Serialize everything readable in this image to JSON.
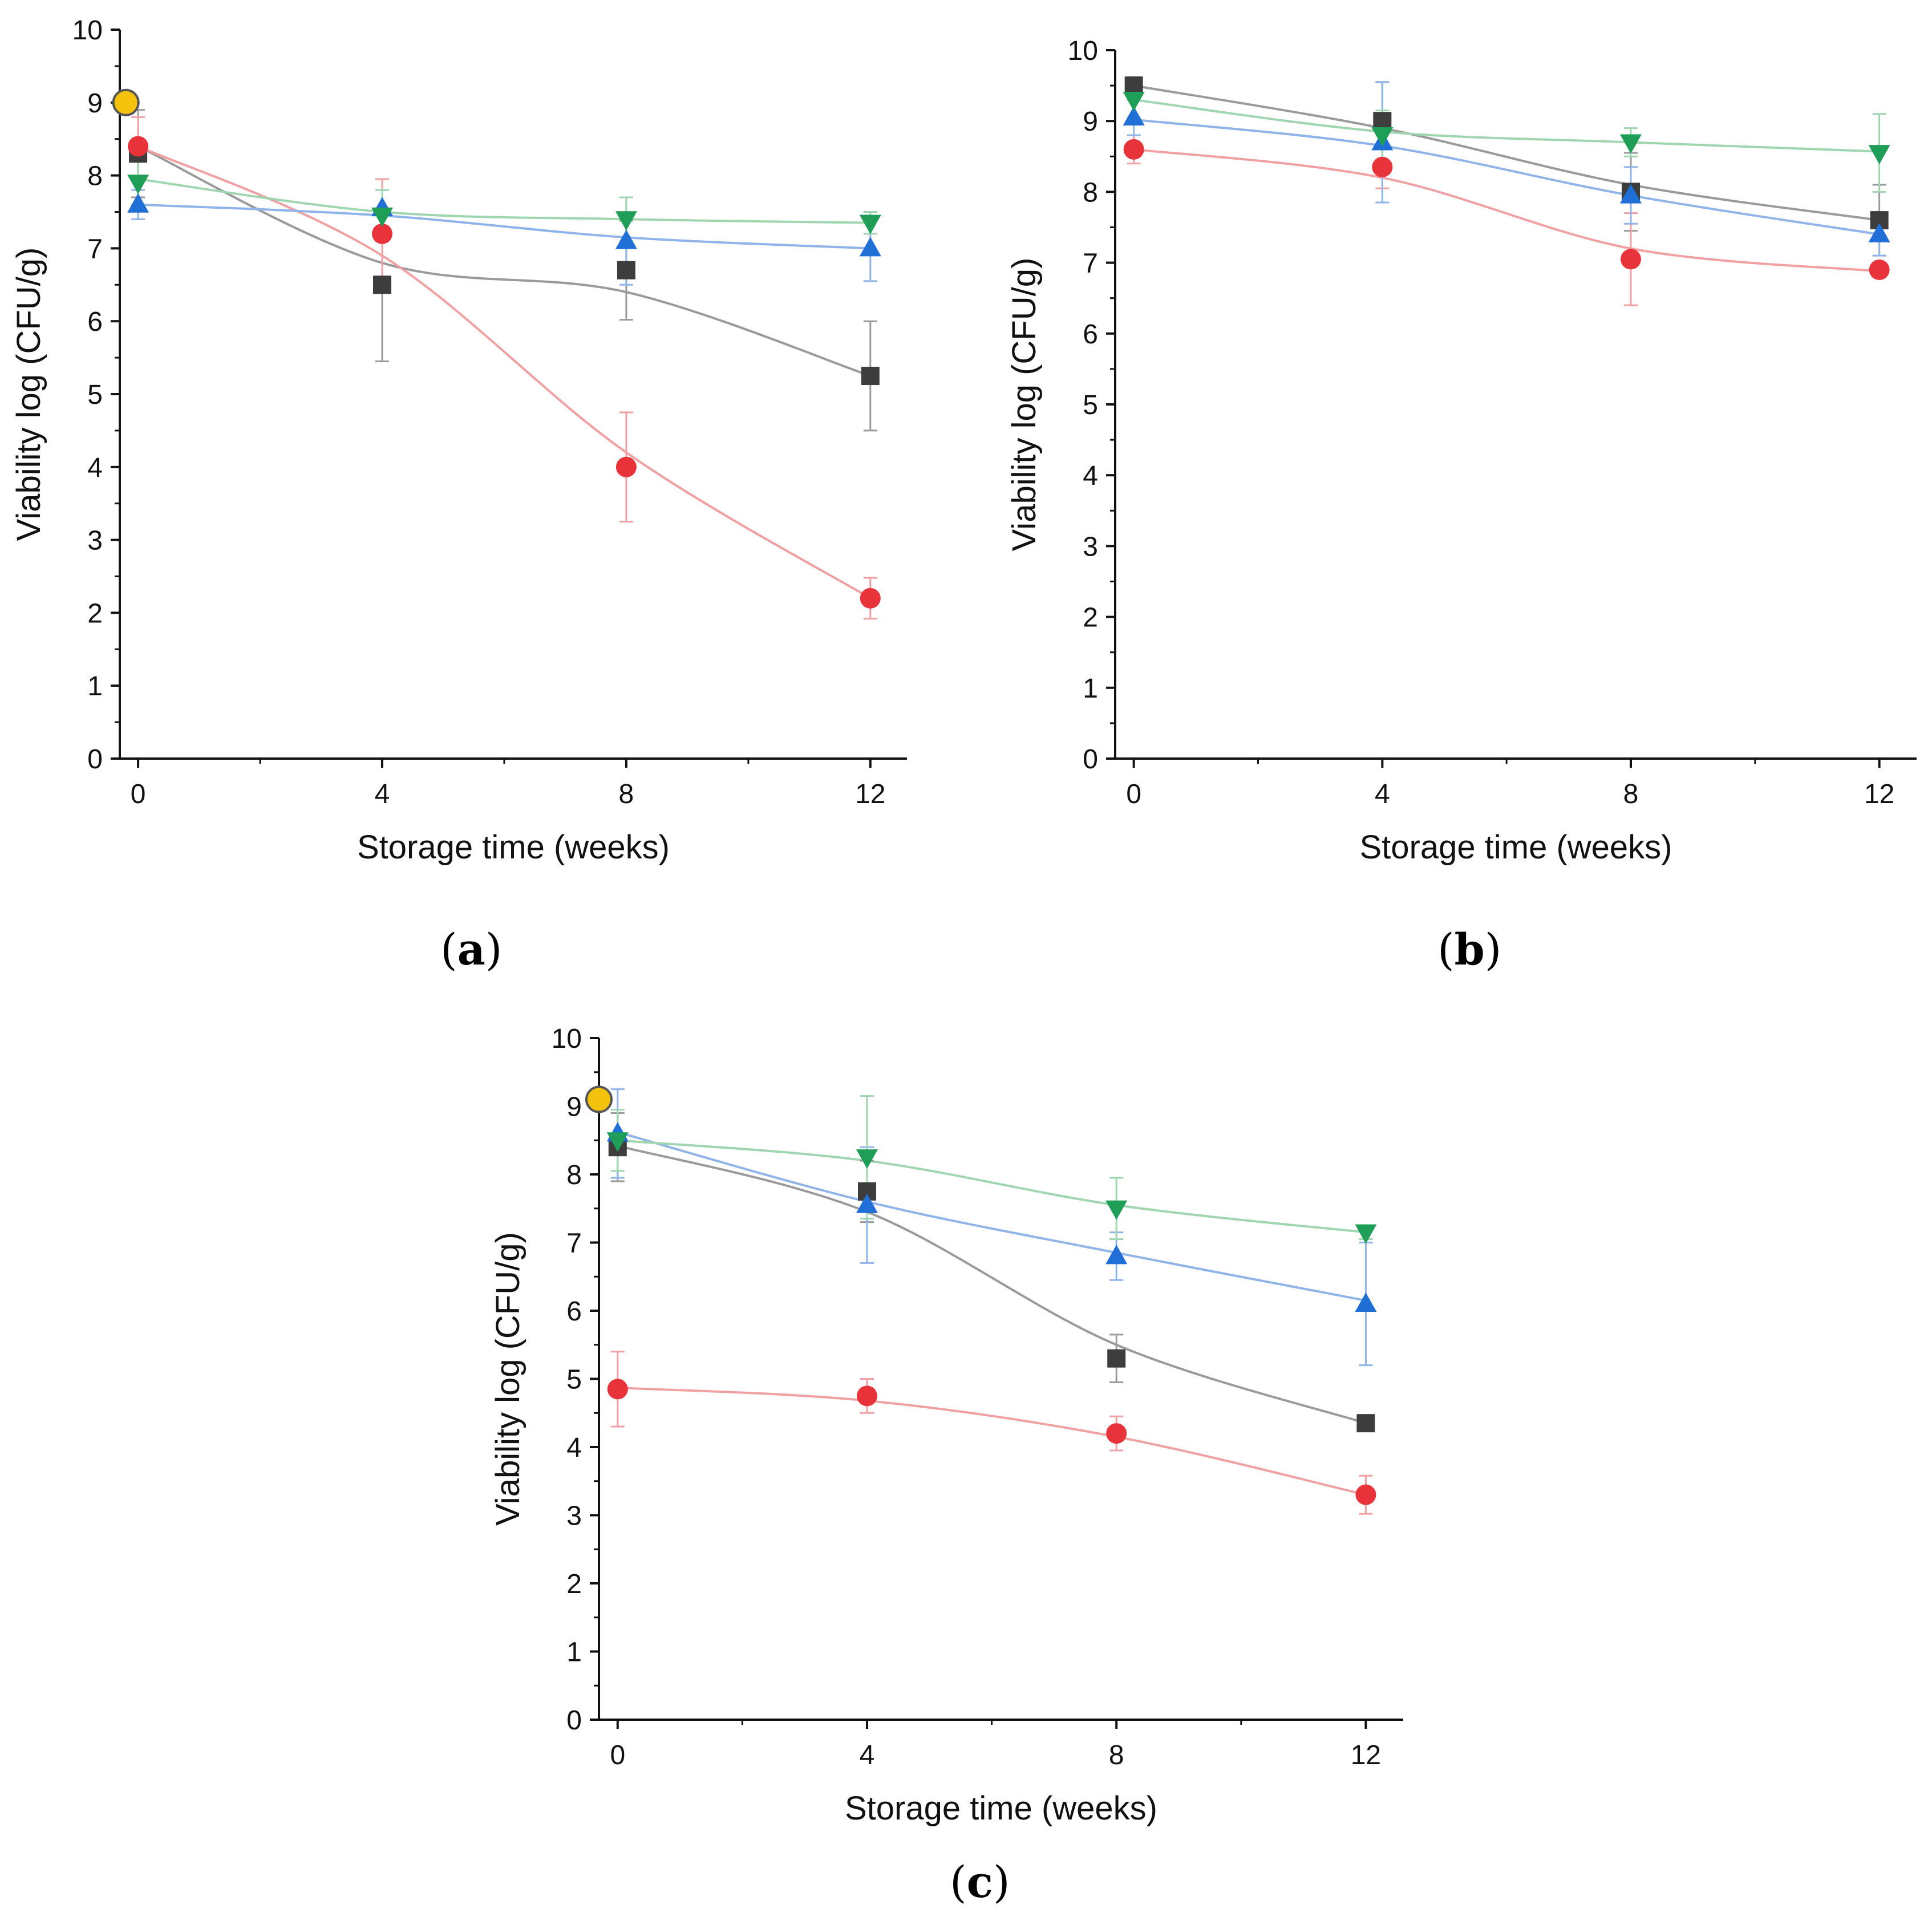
{
  "figure": {
    "panels": [
      "a",
      "b",
      "c"
    ]
  },
  "colors": {
    "black": "#3d3d3d",
    "black_fit": "#9a9a9a",
    "red": "#e8333a",
    "red_fit": "#f0a0a2",
    "blue": "#1f6fd6",
    "blue_fit": "#8fb4ea",
    "green": "#1f9e57",
    "green_fit": "#9fd6b0",
    "initial": "#f4c20d",
    "axis": "#111111"
  },
  "chart_data": [
    {
      "panel": "a",
      "type": "line",
      "xlabel": "Storage time (weeks)",
      "ylabel": "Viability log (CFU/g)",
      "xlim": [
        -0.3,
        12.6
      ],
      "ylim": [
        0,
        10
      ],
      "xticks": [
        0,
        4,
        8,
        12
      ],
      "yticks": [
        0,
        1,
        2,
        3,
        4,
        5,
        6,
        7,
        8,
        9,
        10
      ],
      "initial_point": {
        "x": -0.2,
        "y": 9.0,
        "marker": "circle"
      },
      "series": [
        {
          "marker": "square",
          "color": "black",
          "x": [
            0,
            4,
            8,
            12
          ],
          "y": [
            8.3,
            6.5,
            6.7,
            5.25
          ],
          "err": [
            0.6,
            1.05,
            0.68,
            0.75
          ],
          "fit": [
            8.4,
            6.8,
            6.4,
            5.25
          ]
        },
        {
          "marker": "circle",
          "color": "red",
          "x": [
            0,
            4,
            8,
            12
          ],
          "y": [
            8.4,
            7.2,
            4.0,
            2.2
          ],
          "err": [
            0.4,
            0.75,
            0.75,
            0.28
          ],
          "fit": [
            8.4,
            6.9,
            4.2,
            2.2
          ]
        },
        {
          "marker": "triangle-up",
          "color": "blue",
          "x": [
            0,
            4,
            8,
            12
          ],
          "y": [
            7.6,
            7.55,
            7.1,
            7.0
          ],
          "err": [
            0.2,
            0.25,
            0.6,
            0.45
          ],
          "fit": [
            7.6,
            7.45,
            7.15,
            7.0
          ]
        },
        {
          "marker": "triangle-down",
          "color": "green",
          "x": [
            0,
            4,
            8,
            12
          ],
          "y": [
            7.9,
            7.45,
            7.4,
            7.35
          ],
          "err": [
            0.3,
            0.35,
            0.3,
            0.15
          ],
          "fit": [
            7.95,
            7.5,
            7.4,
            7.35
          ]
        }
      ]
    },
    {
      "panel": "b",
      "type": "line",
      "xlabel": "Storage time (weeks)",
      "ylabel": "Viability log (CFU/g)",
      "xlim": [
        -0.3,
        12.6
      ],
      "ylim": [
        0,
        10
      ],
      "xticks": [
        0,
        4,
        8,
        12
      ],
      "yticks": [
        0,
        1,
        2,
        3,
        4,
        5,
        6,
        7,
        8,
        9,
        10
      ],
      "series": [
        {
          "marker": "square",
          "color": "black",
          "x": [
            0,
            4,
            8,
            12
          ],
          "y": [
            9.5,
            9.0,
            8.0,
            7.6
          ],
          "err": [
            0.12,
            0.55,
            0.55,
            0.5
          ],
          "fit": [
            9.5,
            8.9,
            8.1,
            7.6
          ]
        },
        {
          "marker": "circle",
          "color": "red",
          "x": [
            0,
            4,
            8,
            12
          ],
          "y": [
            8.6,
            8.35,
            7.05,
            6.9
          ],
          "err": [
            0.2,
            0.3,
            0.65,
            0.1
          ],
          "fit": [
            8.6,
            8.2,
            7.2,
            6.88
          ]
        },
        {
          "marker": "triangle-up",
          "color": "blue",
          "x": [
            0,
            4,
            8,
            12
          ],
          "y": [
            9.05,
            8.7,
            7.95,
            7.4
          ],
          "err": [
            0.25,
            0.85,
            0.4,
            0.3
          ],
          "fit": [
            9.02,
            8.65,
            7.95,
            7.4
          ]
        },
        {
          "marker": "triangle-down",
          "color": "green",
          "x": [
            0,
            4,
            8,
            12
          ],
          "y": [
            9.3,
            8.8,
            8.7,
            8.55
          ],
          "err": [
            0.25,
            0.35,
            0.2,
            0.55
          ],
          "fit": [
            9.3,
            8.85,
            8.7,
            8.57
          ]
        }
      ]
    },
    {
      "panel": "c",
      "type": "line",
      "xlabel": "Storage time (weeks)",
      "ylabel": "Viability log (CFU/g)",
      "xlim": [
        -0.3,
        12.6
      ],
      "ylim": [
        0,
        10
      ],
      "xticks": [
        0,
        4,
        8,
        12
      ],
      "yticks": [
        0,
        1,
        2,
        3,
        4,
        5,
        6,
        7,
        8,
        9,
        10
      ],
      "initial_point": {
        "x": -0.3,
        "y": 9.1,
        "marker": "circle"
      },
      "series": [
        {
          "marker": "square",
          "color": "black",
          "x": [
            0,
            4,
            8,
            12
          ],
          "y": [
            8.4,
            7.75,
            5.3,
            4.35
          ],
          "err": [
            0.5,
            0.45,
            0.35,
            0.05
          ],
          "fit": [
            8.42,
            7.45,
            5.5,
            4.35
          ]
        },
        {
          "marker": "circle",
          "color": "red",
          "x": [
            0,
            4,
            8,
            12
          ],
          "y": [
            4.85,
            4.75,
            4.2,
            3.3
          ],
          "err": [
            0.55,
            0.25,
            0.25,
            0.28
          ],
          "fit": [
            4.87,
            4.68,
            4.15,
            3.3
          ]
        },
        {
          "marker": "triangle-up",
          "color": "blue",
          "x": [
            0,
            4,
            8,
            12
          ],
          "y": [
            8.6,
            7.55,
            6.8,
            6.1
          ],
          "err": [
            0.65,
            0.85,
            0.35,
            0.9
          ],
          "fit": [
            8.62,
            7.6,
            6.85,
            6.15
          ]
        },
        {
          "marker": "triangle-down",
          "color": "green",
          "x": [
            0,
            4,
            8,
            12
          ],
          "y": [
            8.5,
            8.25,
            7.5,
            7.15
          ],
          "err": [
            0.45,
            0.9,
            0.45,
            0.1
          ],
          "fit": [
            8.5,
            8.2,
            7.55,
            7.15
          ]
        }
      ]
    }
  ]
}
